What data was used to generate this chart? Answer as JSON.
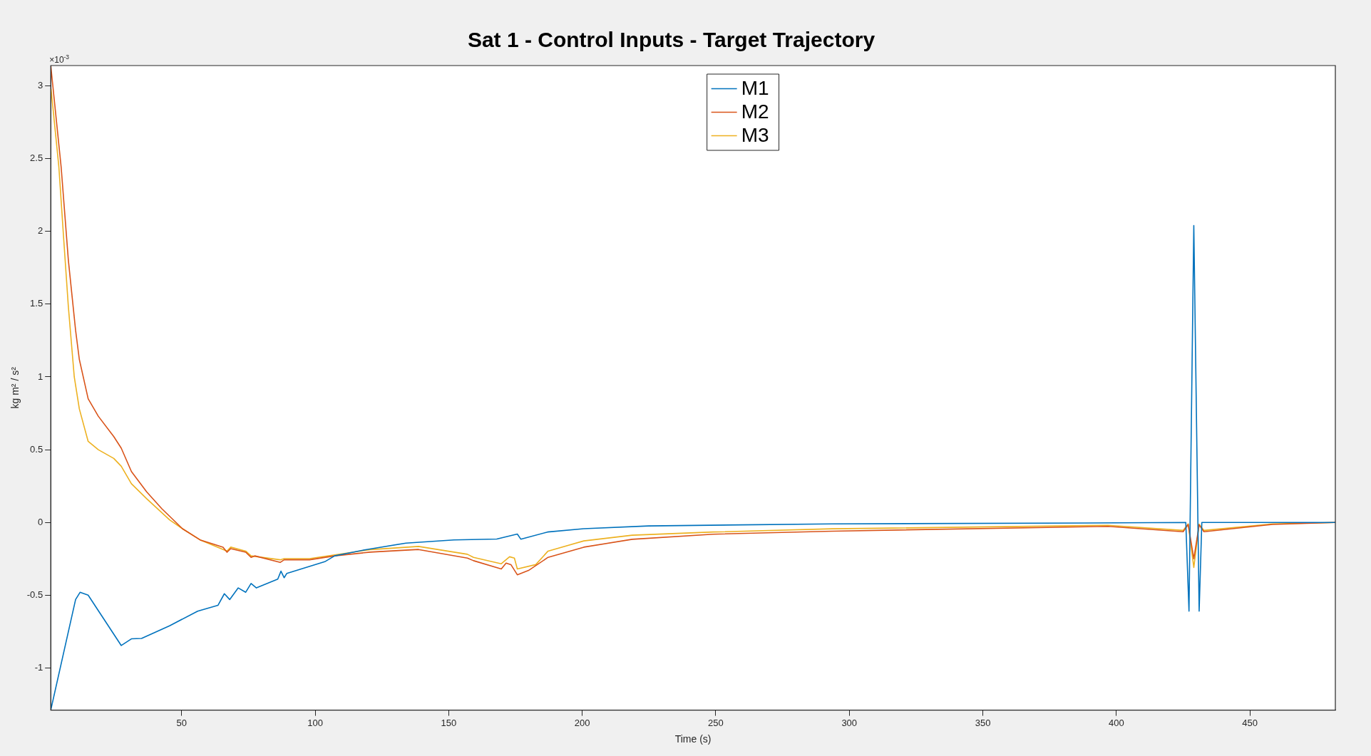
{
  "chart_data": {
    "type": "line",
    "title": "Sat 1 - Control Inputs - Target Trajectory",
    "xlabel": "Time (s)",
    "ylabel": "kg m² / s²",
    "annotations": [
      "×10$^{-3}$"
    ],
    "legend": "top",
    "marker": "none",
    "line_style": "solid",
    "xlim": [
      1,
      482
    ],
    "xticks": [
      50,
      100,
      150,
      200,
      250,
      300,
      350,
      400,
      450
    ],
    "ylim": [
      -1.29,
      3.14
    ],
    "yticks": [
      -1,
      -0.5,
      0,
      0.5,
      1,
      1.5,
      2,
      2.5,
      3
    ],
    "series": [
      {
        "name": "M1",
        "color": "#0072bd",
        "x": [
          1,
          10.3,
          12,
          15,
          27.4,
          31.2,
          35,
          45.5,
          56,
          63.6,
          66,
          68,
          71.2,
          74,
          76,
          78,
          86,
          87.2,
          88.4,
          89.4,
          103.6,
          107.3,
          119.3,
          134,
          152,
          168,
          175.7,
          177,
          187,
          200.6,
          224.8,
          293.6,
          400,
          426,
          427.2,
          429,
          431,
          432,
          482
        ],
        "values": [
          -1.29,
          -0.53,
          -0.48,
          -0.5,
          -0.846,
          -0.8,
          -0.797,
          -0.71,
          -0.61,
          -0.57,
          -0.49,
          -0.53,
          -0.45,
          -0.48,
          -0.42,
          -0.45,
          -0.39,
          -0.335,
          -0.38,
          -0.35,
          -0.27,
          -0.23,
          -0.186,
          -0.142,
          -0.12,
          -0.114,
          -0.08,
          -0.115,
          -0.066,
          -0.043,
          -0.024,
          -0.01,
          -0.003,
          0,
          -0.61,
          2.04,
          -0.61,
          0,
          0
        ]
      },
      {
        "name": "M2",
        "color": "#d95319",
        "x": [
          1,
          4.9,
          7.6,
          10.3,
          11.7,
          15,
          18.8,
          24.6,
          27.4,
          31.2,
          36.9,
          42.6,
          50.3,
          56.9,
          65.5,
          67,
          68.4,
          74,
          76,
          77.4,
          86.9,
          88.4,
          97.9,
          107.3,
          120.6,
          127.8,
          138.7,
          157,
          159.3,
          169.7,
          171.5,
          173.3,
          175.7,
          179.9,
          187.2,
          200.6,
          218.7,
          249,
          293.6,
          396.9,
          425,
          426.9,
          429,
          431,
          432.8,
          458.5,
          482
        ],
        "values": [
          3.14,
          2.44,
          1.8,
          1.32,
          1.12,
          0.85,
          0.73,
          0.59,
          0.51,
          0.35,
          0.21,
          0.094,
          -0.043,
          -0.12,
          -0.17,
          -0.205,
          -0.18,
          -0.205,
          -0.24,
          -0.23,
          -0.275,
          -0.257,
          -0.257,
          -0.23,
          -0.204,
          -0.197,
          -0.186,
          -0.245,
          -0.263,
          -0.32,
          -0.28,
          -0.29,
          -0.36,
          -0.33,
          -0.24,
          -0.17,
          -0.116,
          -0.081,
          -0.06,
          -0.027,
          -0.064,
          -0.014,
          -0.25,
          -0.017,
          -0.064,
          -0.014,
          0
        ]
      },
      {
        "name": "M3",
        "color": "#edb120",
        "x": [
          1.1,
          4.05,
          5.8,
          7.6,
          9.8,
          11.7,
          15,
          18.8,
          24.6,
          27.4,
          31.2,
          36.9,
          45.5,
          50.3,
          56.9,
          67,
          68.4,
          74,
          76,
          86.9,
          88.4,
          97.9,
          107.3,
          120.6,
          138.7,
          157,
          159.3,
          169.7,
          172.8,
          174.6,
          175.7,
          182.6,
          187.2,
          200.6,
          218.7,
          249,
          293.6,
          396.9,
          425,
          426.9,
          429,
          431,
          432.8,
          458.5,
          482
        ],
        "values": [
          2.98,
          2.44,
          1.96,
          1.48,
          1.0,
          0.78,
          0.557,
          0.5,
          0.44,
          0.386,
          0.266,
          0.163,
          0.017,
          -0.043,
          -0.12,
          -0.197,
          -0.17,
          -0.197,
          -0.23,
          -0.257,
          -0.249,
          -0.249,
          -0.223,
          -0.187,
          -0.165,
          -0.219,
          -0.24,
          -0.284,
          -0.236,
          -0.245,
          -0.32,
          -0.29,
          -0.197,
          -0.127,
          -0.088,
          -0.066,
          -0.044,
          -0.02,
          -0.055,
          -0.01,
          -0.31,
          -0.012,
          -0.055,
          -0.01,
          0
        ]
      }
    ]
  }
}
